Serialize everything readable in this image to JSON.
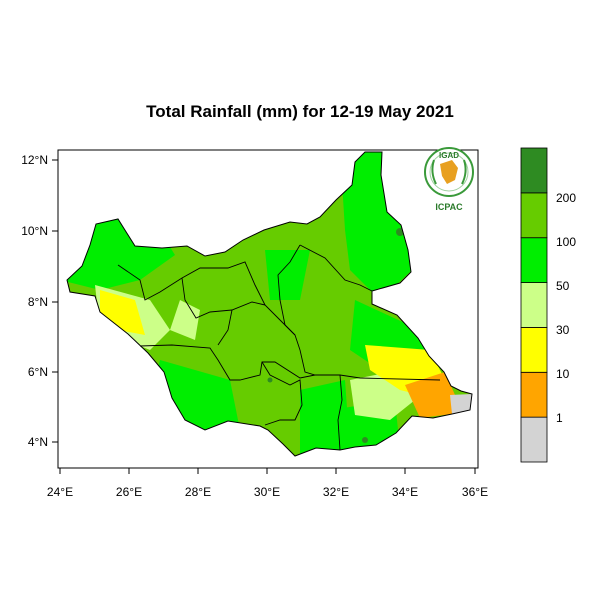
{
  "map": {
    "title": "Total Rainfall (mm) for 12-19 May 2021",
    "x_ticks": [
      "24°E",
      "26°E",
      "28°E",
      "30°E",
      "32°E",
      "34°E",
      "36°E"
    ],
    "y_ticks": [
      "4°N",
      "6°N",
      "8°N",
      "10°N",
      "12°N"
    ],
    "lon_range": [
      24,
      36
    ],
    "lat_range": [
      3.5,
      12.3
    ]
  },
  "legend": {
    "bins": [
      {
        "color": "#d3d3d3"
      },
      {
        "color": "#ffa500"
      },
      {
        "color": "#ffff00"
      },
      {
        "color": "#ccff88"
      },
      {
        "color": "#00ee00"
      },
      {
        "color": "#66cc00"
      },
      {
        "color": "#2e8b22"
      }
    ],
    "labels": [
      "1",
      "10",
      "30",
      "50",
      "100",
      "200"
    ]
  },
  "logo": {
    "top_text": "IGAD",
    "bottom_text": "ICPAC"
  }
}
